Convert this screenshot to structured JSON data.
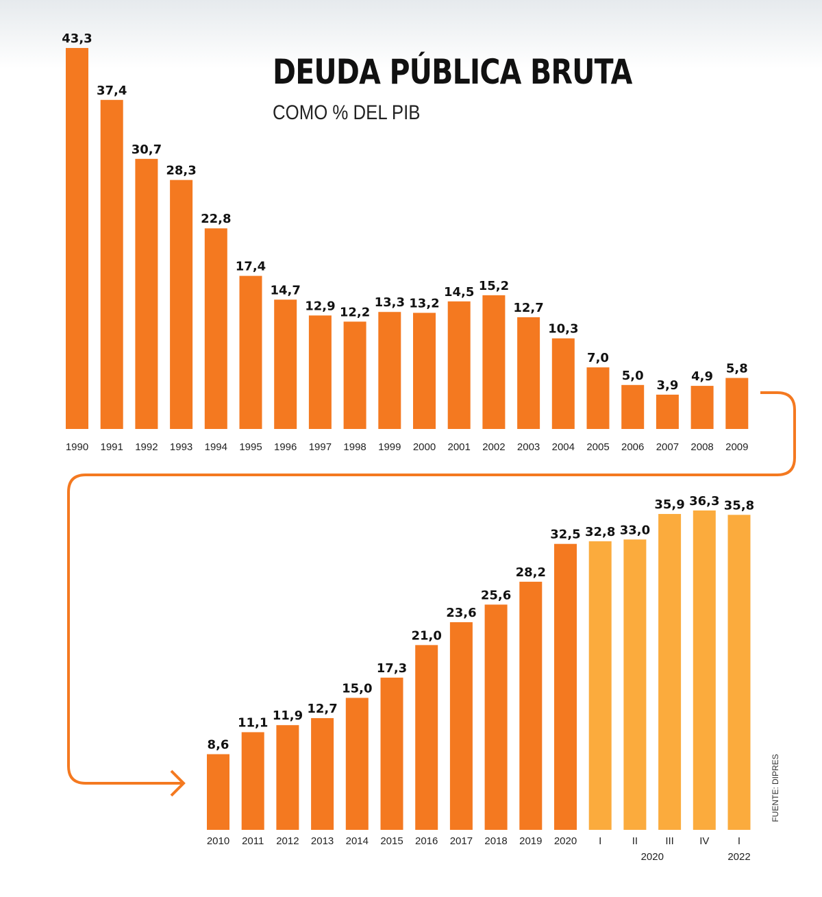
{
  "title": "DEUDA PÚBLICA BRUTA",
  "subtitle": "COMO % DEL PIB",
  "source": "FUENTE: DIPRES",
  "colors": {
    "annual": "#f47920",
    "quarterly": "#fbab3d",
    "connector": "#f47920"
  },
  "chart_data": [
    {
      "type": "bar",
      "categories": [
        "1990",
        "1991",
        "1992",
        "1993",
        "1994",
        "1995",
        "1996",
        "1997",
        "1998",
        "1999",
        "2000",
        "2001",
        "2002",
        "2003",
        "2004",
        "2005",
        "2006",
        "2007",
        "2008",
        "2009"
      ],
      "values": [
        43.3,
        37.4,
        30.7,
        28.3,
        22.8,
        17.4,
        14.7,
        12.9,
        12.2,
        13.3,
        13.2,
        14.5,
        15.2,
        12.7,
        10.3,
        7.0,
        5.0,
        3.9,
        4.9,
        5.8
      ],
      "labels": [
        "43,3",
        "37,4",
        "30,7",
        "28,3",
        "22,8",
        "17,4",
        "14,7",
        "12,9",
        "12,2",
        "13,3",
        "13,2",
        "14,5",
        "15,2",
        "12,7",
        "10,3",
        "7,0",
        "5,0",
        "3,9",
        "4,9",
        "5,8"
      ],
      "ylim": [
        0,
        45
      ]
    },
    {
      "type": "bar",
      "categories": [
        "2010",
        "2011",
        "2012",
        "2013",
        "2014",
        "2015",
        "2016",
        "2017",
        "2018",
        "2019",
        "2020",
        "I",
        "II",
        "III",
        "IV",
        "I"
      ],
      "group_labels": [
        {
          "label": "2020",
          "from": 11,
          "to": 14
        },
        {
          "label": "2022",
          "from": 15,
          "to": 15
        }
      ],
      "values": [
        8.6,
        11.1,
        11.9,
        12.7,
        15.0,
        17.3,
        21.0,
        23.6,
        25.6,
        28.2,
        32.5,
        32.8,
        33.0,
        35.9,
        36.3,
        35.8
      ],
      "labels": [
        "8,6",
        "11,1",
        "11,9",
        "12,7",
        "15,0",
        "17,3",
        "21,0",
        "23,6",
        "25,6",
        "28,2",
        "32,5",
        "32,8",
        "33,0",
        "35,9",
        "36,3",
        "35,8"
      ],
      "series_kind": [
        "annual",
        "annual",
        "annual",
        "annual",
        "annual",
        "annual",
        "annual",
        "annual",
        "annual",
        "annual",
        "annual",
        "quarterly",
        "quarterly",
        "quarterly",
        "quarterly",
        "quarterly"
      ],
      "ylim": [
        0,
        45
      ]
    }
  ]
}
